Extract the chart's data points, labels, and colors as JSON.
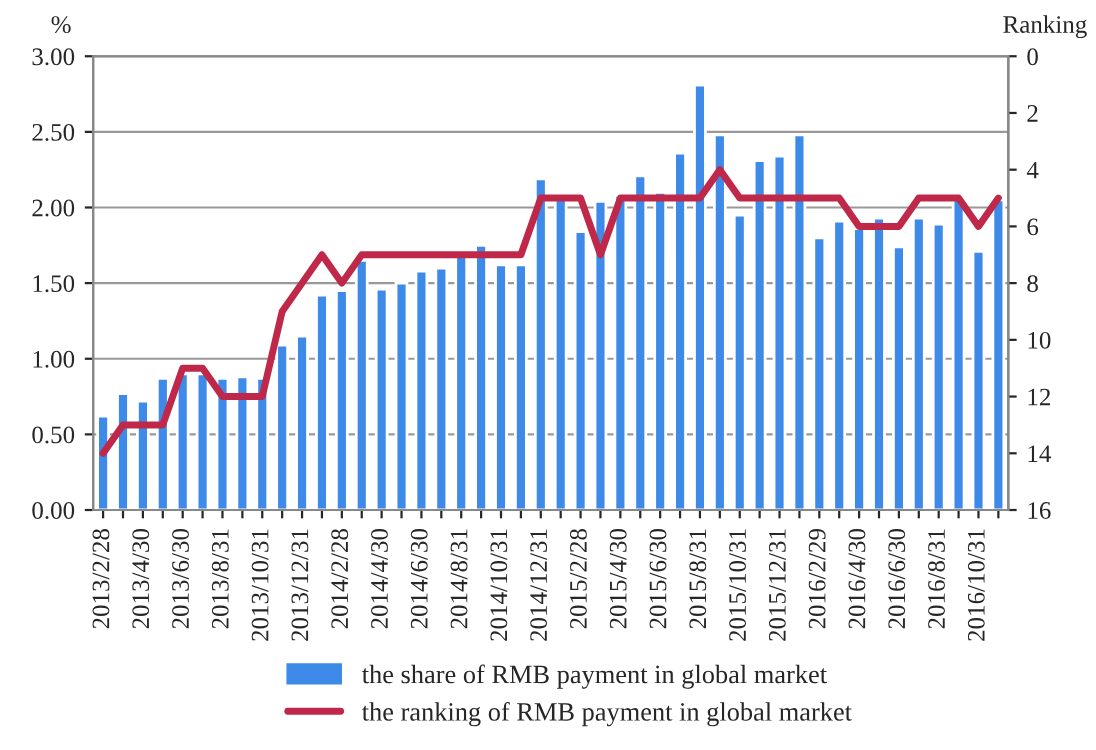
{
  "chart_data": {
    "type": "bar",
    "ylabel": "%",
    "y2label": "Ranking",
    "categories": [
      "2013/2/28",
      null,
      "2013/4/30",
      null,
      "2013/6/30",
      null,
      "2013/8/31",
      null,
      "2013/10/31",
      null,
      "2013/12/31",
      null,
      "2014/2/28",
      null,
      "2014/4/30",
      null,
      "2014/6/30",
      null,
      "2014/8/31",
      null,
      "2014/10/31",
      null,
      "2014/12/31",
      null,
      "2015/2/28",
      null,
      "2015/4/30",
      null,
      "2015/6/30",
      null,
      "2015/8/31",
      null,
      "2015/10/31",
      null,
      "2015/12/31",
      null,
      "2016/2/29",
      null,
      "2016/4/30",
      null,
      "2016/6/30",
      null,
      "2016/8/31",
      null,
      "2016/10/31",
      null
    ],
    "series": [
      {
        "name": "the share of RMB payment in global market",
        "color": "#3d8ae8",
        "values": [
          0.62,
          0.77,
          0.72,
          0.87,
          0.9,
          0.9,
          0.87,
          0.88,
          0.87,
          1.09,
          1.15,
          1.42,
          1.45,
          1.65,
          1.46,
          1.5,
          1.58,
          1.6,
          1.68,
          1.75,
          1.62,
          1.62,
          2.19,
          2.08,
          1.84,
          2.04,
          2.08,
          2.21,
          2.1,
          2.36,
          2.81,
          2.48,
          1.95,
          2.31,
          2.34,
          2.48,
          1.8,
          1.91,
          1.86,
          1.93,
          1.74,
          1.93,
          1.89,
          2.06,
          1.71,
          2.05
        ]
      },
      {
        "name": "the ranking of RMB payment in global market",
        "type": "line",
        "axis": "y2",
        "color": "#c0284a",
        "values": [
          14,
          13,
          13,
          13,
          11,
          11,
          12,
          12,
          12,
          9,
          8,
          7,
          8,
          7,
          7,
          7,
          7,
          7,
          7,
          7,
          7,
          7,
          5,
          5,
          5,
          7,
          5,
          5,
          5,
          5,
          5,
          4,
          5,
          5,
          5,
          5,
          5,
          5,
          6,
          6,
          6,
          5,
          5,
          5,
          6,
          5
        ]
      }
    ],
    "ylim": [
      0,
      3
    ],
    "yticks": [
      {
        "value": 0,
        "label": "0.00"
      },
      {
        "value": 0.5,
        "label": "0.50"
      },
      {
        "value": 1,
        "label": "1.00"
      },
      {
        "value": 1.5,
        "label": "1.50"
      },
      {
        "value": 2,
        "label": "2.00"
      },
      {
        "value": 2.5,
        "label": "2.50"
      },
      {
        "value": 3,
        "label": "3.00"
      }
    ],
    "y2lim": [
      16,
      0
    ],
    "y2ticks": [
      0,
      2,
      4,
      6,
      8,
      10,
      12,
      14,
      16
    ],
    "grid": "y",
    "legend": "bottom",
    "marker": "none",
    "line_style": "solid"
  }
}
